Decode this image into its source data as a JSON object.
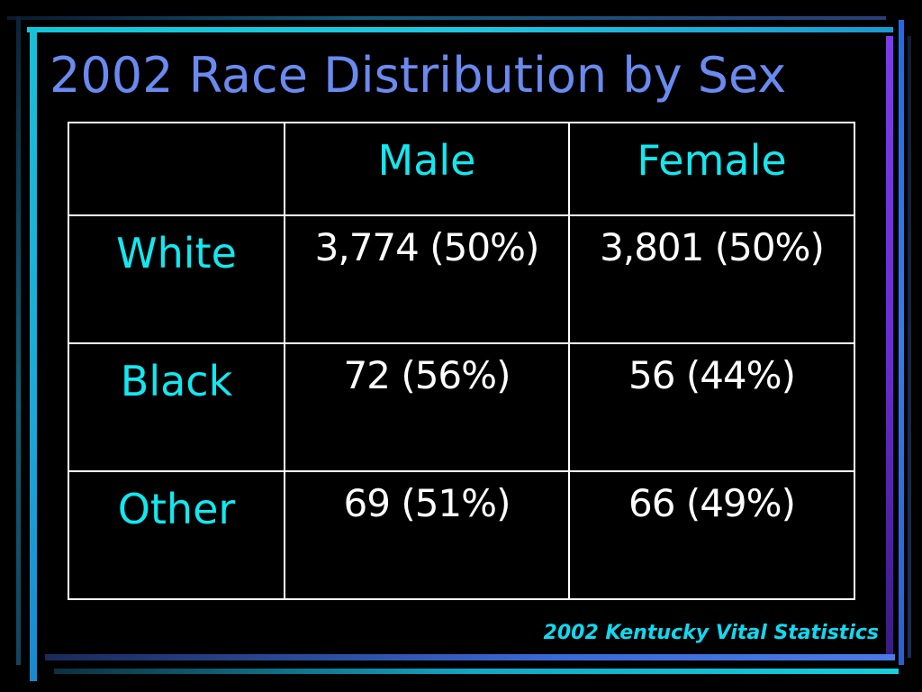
{
  "slide": {
    "title": "2002 Race Distribution by Sex",
    "source": "2002 Kentucky Vital Statistics"
  },
  "table": {
    "headers": [
      "",
      "Male",
      "Female"
    ],
    "rows": [
      {
        "label": "White",
        "male": "3,774 (50%)",
        "female": "3,801 (50%)"
      },
      {
        "label": "Black",
        "male": "72 (56%)",
        "female": "56 (44%)"
      },
      {
        "label": "Other",
        "male": "69 (51%)",
        "female": "66 (49%)"
      }
    ]
  },
  "colors": {
    "background": "#000000",
    "title": "#6a8af0",
    "header_text": "#12e8f0",
    "cell_text": "#ffffff",
    "grid": "#ffffff",
    "source_text": "#12d8f0"
  }
}
